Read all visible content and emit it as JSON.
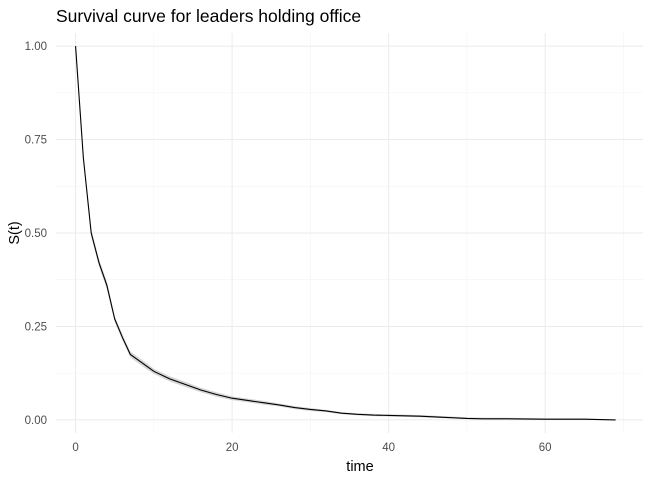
{
  "chart_data": {
    "type": "line",
    "title": "Survival curve for leaders holding office",
    "xlabel": "time",
    "ylabel": "S(t)",
    "xlim": [
      -2.5,
      72.5
    ],
    "ylim": [
      -0.035,
      1.035
    ],
    "x_ticks": [
      0,
      20,
      40,
      60
    ],
    "x_tick_labels": [
      "0",
      "20",
      "40",
      "60"
    ],
    "y_ticks": [
      0,
      0.25,
      0.5,
      0.75,
      1
    ],
    "y_tick_labels": [
      "0.00",
      "0.25",
      "0.50",
      "0.75",
      "1.00"
    ],
    "grid": true,
    "legend": "none",
    "colors": {
      "line": "#000000",
      "ribbon": "#c8c8c8",
      "grid": "#ebebeb"
    },
    "series": [
      {
        "x": [
          0,
          1,
          2,
          3,
          4,
          5,
          6,
          7,
          8,
          9,
          10,
          12,
          14,
          16,
          18,
          20,
          22,
          24,
          26,
          28,
          30,
          32,
          34,
          36,
          38,
          40,
          42,
          44,
          46,
          48,
          50,
          52,
          55,
          60,
          65,
          69
        ],
        "y": [
          1.0,
          0.7,
          0.5,
          0.42,
          0.36,
          0.27,
          0.22,
          0.175,
          0.16,
          0.145,
          0.13,
          0.11,
          0.095,
          0.08,
          0.068,
          0.058,
          0.052,
          0.046,
          0.04,
          0.033,
          0.028,
          0.024,
          0.018,
          0.015,
          0.013,
          0.012,
          0.011,
          0.01,
          0.008,
          0.006,
          0.004,
          0.003,
          0.003,
          0.002,
          0.002,
          0.0
        ],
        "lower": [
          1.0,
          0.69,
          0.49,
          0.41,
          0.35,
          0.262,
          0.212,
          0.167,
          0.152,
          0.137,
          0.123,
          0.103,
          0.088,
          0.074,
          0.062,
          0.053,
          0.047,
          0.041,
          0.036,
          0.029,
          0.024,
          0.021,
          0.015,
          0.012,
          0.01,
          0.009,
          0.008,
          0.007,
          0.005,
          0.004,
          0.002,
          0.001,
          0.001,
          0.0,
          0.0,
          0.0
        ],
        "upper": [
          1.0,
          0.71,
          0.51,
          0.43,
          0.37,
          0.278,
          0.228,
          0.183,
          0.168,
          0.153,
          0.137,
          0.117,
          0.102,
          0.086,
          0.074,
          0.063,
          0.057,
          0.051,
          0.044,
          0.037,
          0.032,
          0.027,
          0.021,
          0.018,
          0.016,
          0.015,
          0.014,
          0.013,
          0.011,
          0.009,
          0.007,
          0.006,
          0.006,
          0.004,
          0.004,
          0.0
        ]
      }
    ]
  }
}
